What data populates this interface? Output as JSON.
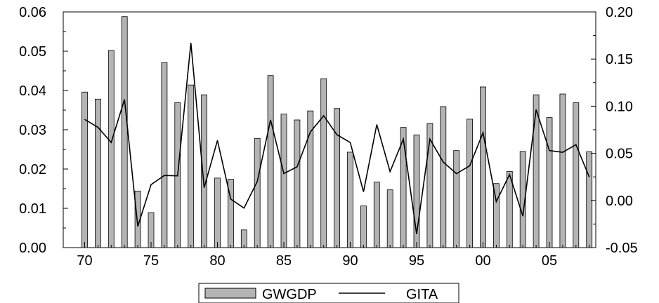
{
  "chart_data": {
    "type": "bar-line-dual-axis",
    "title": "",
    "xlabel": "",
    "ylabel": "",
    "years": [
      1970,
      1971,
      1972,
      1973,
      1974,
      1975,
      1976,
      1977,
      1978,
      1979,
      1980,
      1981,
      1982,
      1983,
      1984,
      1985,
      1986,
      1987,
      1988,
      1989,
      1990,
      1991,
      1992,
      1993,
      1994,
      1995,
      1996,
      1997,
      1998,
      1999,
      2000,
      2001,
      2002,
      2003,
      2004,
      2005,
      2006,
      2007,
      2008
    ],
    "x_tick_labels": [
      "70",
      "75",
      "80",
      "85",
      "90",
      "95",
      "00",
      "05"
    ],
    "x_tick_years": [
      1970,
      1975,
      1980,
      1985,
      1990,
      1995,
      2000,
      2005
    ],
    "left_axis": {
      "ylim": [
        0,
        0.06
      ],
      "ticks": [
        "0.00",
        "0.01",
        "0.02",
        "0.03",
        "0.04",
        "0.05",
        "0.06"
      ]
    },
    "right_axis": {
      "ylim": [
        -0.05,
        0.2
      ],
      "ticks": [
        "-0.05",
        "0.00",
        "0.05",
        "0.10",
        "0.15",
        "0.20"
      ]
    },
    "series": [
      {
        "name": "GWGDP",
        "kind": "bar",
        "axis": "left",
        "color": "#b4b4b4",
        "values": [
          0.0396,
          0.0378,
          0.0502,
          0.0588,
          0.0144,
          0.0089,
          0.0471,
          0.0369,
          0.0414,
          0.0389,
          0.0177,
          0.0174,
          0.0045,
          0.0278,
          0.0438,
          0.034,
          0.0325,
          0.0348,
          0.043,
          0.0354,
          0.0243,
          0.0106,
          0.0167,
          0.0147,
          0.0306,
          0.0287,
          0.0316,
          0.0359,
          0.0247,
          0.0327,
          0.0409,
          0.0163,
          0.0194,
          0.0245,
          0.0389,
          0.0331,
          0.0391,
          0.0369,
          0.0244
        ]
      },
      {
        "name": "GITA",
        "kind": "line",
        "axis": "right",
        "color": "#000000",
        "values": [
          0.086,
          0.0776,
          0.0615,
          0.1072,
          -0.0275,
          0.0168,
          0.0265,
          0.0261,
          0.1672,
          0.0136,
          0.0637,
          0.0015,
          -0.0081,
          0.0201,
          0.0855,
          0.0285,
          0.0357,
          0.0727,
          0.0899,
          0.0697,
          0.0615,
          0.0092,
          0.0805,
          0.0306,
          0.0651,
          -0.0357,
          0.0651,
          0.0408,
          0.0284,
          0.0368,
          0.0719,
          -0.0012,
          0.0275,
          -0.0166,
          0.0964,
          0.0529,
          0.0511,
          0.0592,
          0.0249
        ]
      }
    ],
    "legend": {
      "placement": "bottom-center",
      "entries": [
        "GWGDP",
        "GITA"
      ]
    },
    "grid": false
  }
}
